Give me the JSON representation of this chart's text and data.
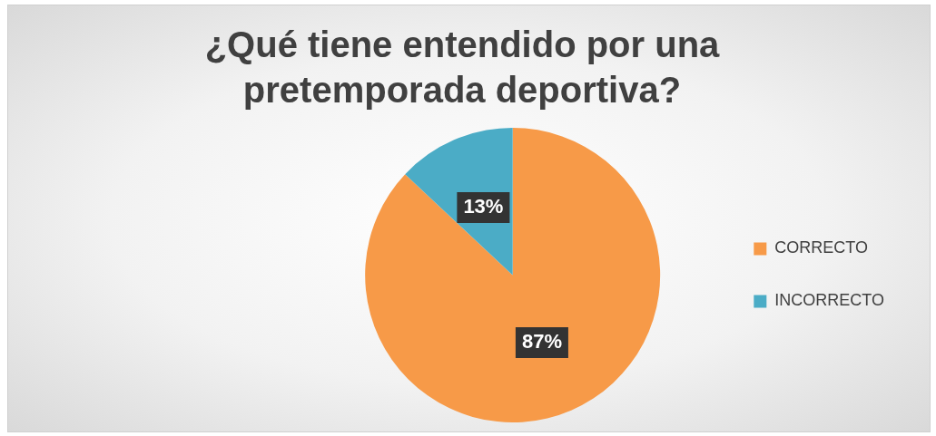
{
  "chart_data": {
    "type": "pie",
    "title": "¿Qué tiene entendido por una pretemporada deportiva?",
    "categories": [
      "CORRECTO",
      "INCORRECTO"
    ],
    "values": [
      87,
      13
    ],
    "colors": [
      "#f79a48",
      "#4bacc6"
    ],
    "value_labels": [
      "87%",
      "13%"
    ],
    "legend": "right"
  }
}
